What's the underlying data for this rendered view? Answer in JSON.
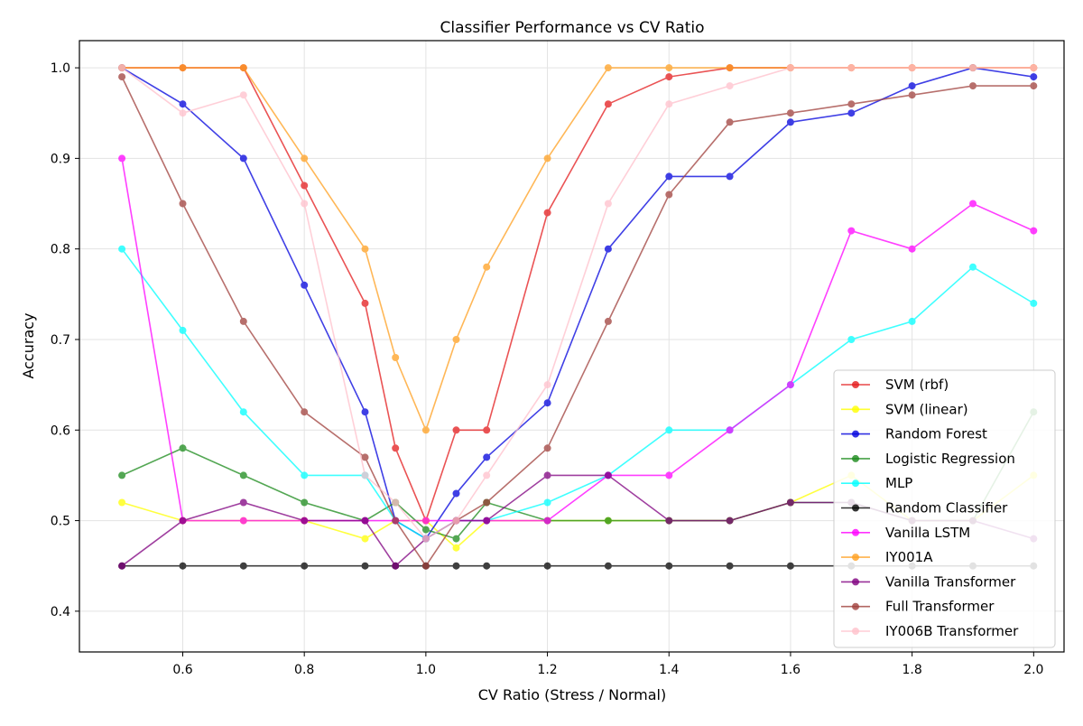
{
  "chart_data": {
    "type": "line",
    "title": "Classifier Performance vs CV Ratio",
    "xlabel": "CV Ratio (Stress / Normal)",
    "ylabel": "Accuracy",
    "xlim": [
      0.43,
      2.05
    ],
    "ylim": [
      0.355,
      1.03
    ],
    "xticks": [
      0.6,
      0.8,
      1.0,
      1.2,
      1.4,
      1.6,
      1.8,
      2.0
    ],
    "xtick_labels": [
      "0.6",
      "0.8",
      "1.0",
      "1.2",
      "1.4",
      "1.6",
      "1.8",
      "2.0"
    ],
    "yticks": [
      0.4,
      0.5,
      0.6,
      0.7,
      0.8,
      0.9,
      1.0
    ],
    "ytick_labels": [
      "0.4",
      "0.5",
      "0.6",
      "0.7",
      "0.8",
      "0.9",
      "1.0"
    ],
    "grid": true,
    "legend_position": "lower-right",
    "markers": "circle",
    "x": [
      0.5,
      0.6,
      0.7,
      0.8,
      0.9,
      0.95,
      1.0,
      1.05,
      1.1,
      1.2,
      1.3,
      1.4,
      1.5,
      1.6,
      1.7,
      1.8,
      1.9,
      2.0
    ],
    "series": [
      {
        "name": "SVM (rbf)",
        "color": "#e41a1c",
        "values": [
          1.0,
          1.0,
          1.0,
          0.87,
          0.74,
          0.58,
          0.5,
          0.6,
          0.6,
          0.84,
          0.96,
          0.99,
          1.0,
          1.0,
          1.0,
          1.0,
          1.0,
          1.0
        ]
      },
      {
        "name": "SVM (linear)",
        "color": "#ffff00",
        "values": [
          0.52,
          0.5,
          0.5,
          0.5,
          0.48,
          0.5,
          0.5,
          0.47,
          0.5,
          0.5,
          0.5,
          0.5,
          0.5,
          0.52,
          0.55,
          0.5,
          0.5,
          0.55
        ]
      },
      {
        "name": "Random Forest",
        "color": "#0000dd",
        "values": [
          1.0,
          0.96,
          0.9,
          0.76,
          0.62,
          0.5,
          0.48,
          0.53,
          0.57,
          0.63,
          0.8,
          0.88,
          0.88,
          0.94,
          0.95,
          0.98,
          1.0,
          0.99
        ]
      },
      {
        "name": "Logistic Regression",
        "color": "#1a8a1a",
        "values": [
          0.55,
          0.58,
          0.55,
          0.52,
          0.5,
          0.52,
          0.49,
          0.48,
          0.52,
          0.5,
          0.5,
          0.5,
          0.5,
          0.52,
          0.52,
          0.5,
          0.5,
          0.62
        ]
      },
      {
        "name": "MLP",
        "color": "#00ffff",
        "values": [
          0.8,
          0.71,
          0.62,
          0.55,
          0.55,
          0.5,
          0.48,
          0.5,
          0.5,
          0.52,
          0.55,
          0.6,
          0.6,
          0.65,
          0.7,
          0.72,
          0.78,
          0.74
        ]
      },
      {
        "name": "Random Classifier",
        "color": "#000000",
        "values": [
          0.45,
          0.45,
          0.45,
          0.45,
          0.45,
          0.45,
          0.45,
          0.45,
          0.45,
          0.45,
          0.45,
          0.45,
          0.45,
          0.45,
          0.45,
          0.45,
          0.45,
          0.45
        ]
      },
      {
        "name": "Vanilla LSTM",
        "color": "#ff00ff",
        "values": [
          0.9,
          0.5,
          0.5,
          0.5,
          0.5,
          0.5,
          0.5,
          0.5,
          0.5,
          0.5,
          0.55,
          0.55,
          0.6,
          0.65,
          0.82,
          0.8,
          0.85,
          0.82
        ]
      },
      {
        "name": "IY001A",
        "color": "#ffa020",
        "values": [
          1.0,
          1.0,
          1.0,
          0.9,
          0.8,
          0.68,
          0.6,
          0.7,
          0.78,
          0.9,
          1.0,
          1.0,
          1.0,
          1.0,
          1.0,
          1.0,
          1.0,
          1.0
        ]
      },
      {
        "name": "Vanilla Transformer",
        "color": "#800080",
        "values": [
          0.45,
          0.5,
          0.52,
          0.5,
          0.5,
          0.45,
          0.48,
          0.5,
          0.5,
          0.55,
          0.55,
          0.5,
          0.5,
          0.52,
          0.52,
          0.5,
          0.5,
          0.48
        ]
      },
      {
        "name": "Full Transformer",
        "color": "#a0403c",
        "values": [
          0.99,
          0.85,
          0.72,
          0.62,
          0.57,
          0.5,
          0.45,
          0.5,
          0.52,
          0.58,
          0.72,
          0.86,
          0.94,
          0.95,
          0.96,
          0.97,
          0.98,
          0.98
        ]
      },
      {
        "name": "IY006B Transformer",
        "color": "#ffc0cb",
        "values": [
          1.0,
          0.95,
          0.97,
          0.85,
          0.55,
          0.52,
          0.48,
          0.5,
          0.55,
          0.65,
          0.85,
          0.96,
          0.98,
          1.0,
          1.0,
          1.0,
          1.0,
          1.0
        ]
      }
    ]
  }
}
